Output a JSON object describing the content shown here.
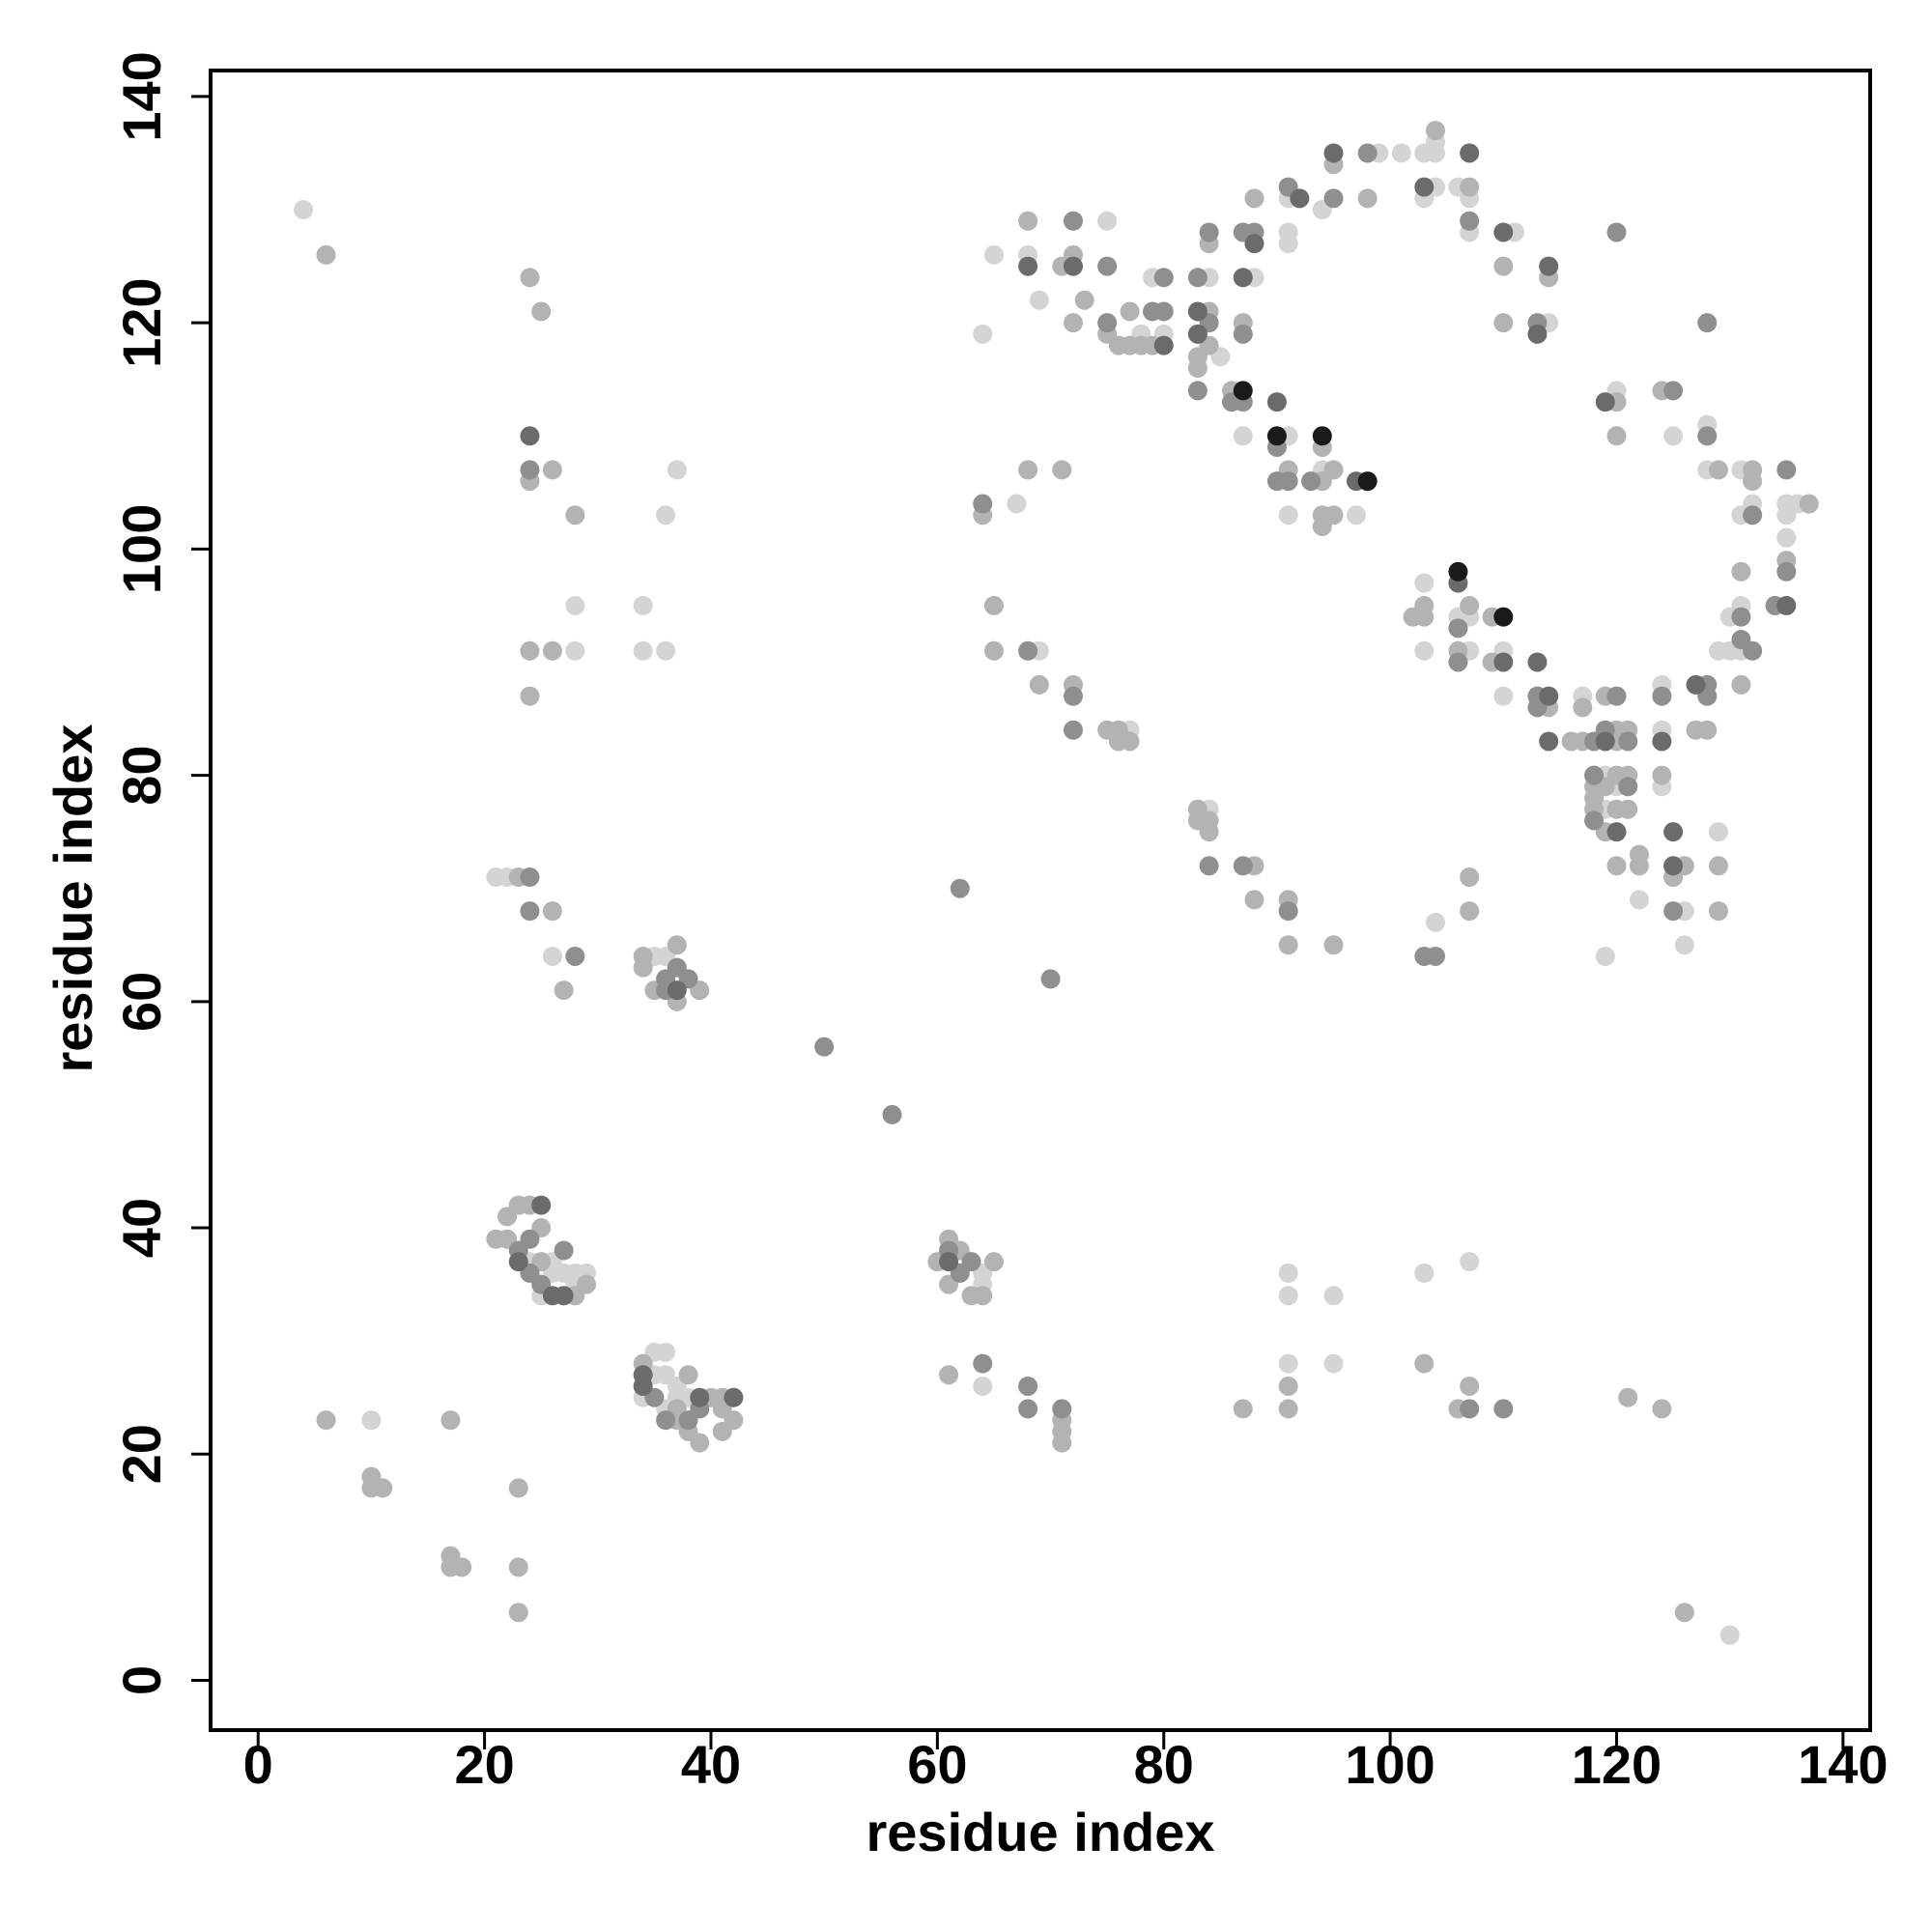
{
  "chart_data": {
    "type": "scatter",
    "x_label": "residue index",
    "y_label": "residue index",
    "xlim": [
      -4.2,
      142.4
    ],
    "ylim": [
      -4.4,
      142.3
    ],
    "xticks": [
      0,
      20,
      40,
      60,
      80,
      100,
      120,
      140
    ],
    "yticks": [
      0,
      20,
      40,
      60,
      80,
      100,
      120,
      140
    ],
    "series": [
      {
        "color": "#d4d4d4",
        "x": [
          4,
          28,
          28,
          34,
          34,
          36,
          36,
          37,
          21,
          22,
          26,
          35,
          36,
          24,
          26,
          27,
          28,
          29,
          25,
          26,
          28,
          35,
          36,
          35,
          36,
          37,
          34,
          36,
          38,
          37,
          10,
          130,
          64,
          64,
          64,
          91,
          91,
          91,
          95,
          95,
          103,
          107,
          64,
          65,
          68,
          69,
          75,
          78,
          79,
          80,
          84,
          85,
          87,
          88,
          91,
          91,
          91,
          91,
          91,
          94,
          94,
          97,
          99,
          101,
          103,
          103,
          104,
          104,
          104,
          106,
          107,
          107,
          111,
          114,
          120,
          125,
          128,
          128,
          131,
          131,
          132,
          135,
          135,
          135,
          136,
          130,
          131,
          131,
          129,
          130,
          124,
          124,
          124,
          103,
          103,
          106,
          107,
          107,
          110,
          110,
          117,
          119,
          119,
          120,
          119,
          122,
          126,
          126,
          129,
          67,
          69,
          77,
          84,
          104
        ],
        "values": [
          130,
          91,
          95,
          95,
          91,
          91,
          103,
          107,
          71,
          71,
          64,
          64,
          64,
          37,
          36,
          36,
          36,
          36,
          34,
          37,
          35,
          29,
          29,
          27,
          27,
          26,
          25,
          24,
          25,
          25,
          23,
          4,
          36,
          35,
          26,
          28,
          34,
          36,
          34,
          28,
          36,
          37,
          119,
          126,
          126,
          122,
          129,
          119,
          124,
          119,
          124,
          117,
          110,
          124,
          110,
          103,
          131,
          128,
          127,
          107,
          130,
          103,
          135,
          135,
          135,
          131,
          135,
          136,
          132,
          132,
          131,
          128,
          128,
          120,
          114,
          110,
          111,
          107,
          107,
          103,
          104,
          104,
          103,
          101,
          104,
          94,
          95,
          91,
          91,
          91,
          88,
          84,
          79,
          97,
          91,
          94,
          94,
          91,
          91,
          87,
          87,
          80,
          77,
          79,
          64,
          69,
          68,
          65,
          75,
          104,
          91,
          84,
          77,
          67
        ]
      },
      {
        "color": "#b3b3b3",
        "x": [
          6,
          24,
          25,
          26,
          24,
          28,
          24,
          26,
          24,
          23,
          26,
          27,
          34,
          34,
          37,
          35,
          37,
          39,
          22,
          23,
          24,
          21,
          22,
          25,
          25,
          28,
          29,
          34,
          37,
          38,
          37,
          38,
          39,
          40,
          41,
          41,
          42,
          41,
          6,
          17,
          10,
          10,
          11,
          23,
          17,
          17,
          18,
          23,
          23,
          60,
          61,
          62,
          61,
          63,
          64,
          65,
          61,
          71,
          71,
          71,
          87,
          91,
          91,
          103,
          106,
          107,
          121,
          124,
          126,
          68,
          71,
          72,
          73,
          72,
          75,
          76,
          77,
          77,
          78,
          79,
          83,
          83,
          84,
          84,
          84,
          86,
          87,
          88,
          91,
          94,
          94,
          94,
          94,
          95,
          95,
          95,
          98,
          104,
          107,
          110,
          110,
          114,
          120,
          120,
          124,
          129,
          132,
          132,
          137,
          135,
          131,
          131,
          127,
          128,
          124,
          102,
          103,
          103,
          106,
          107,
          109,
          109,
          114,
          116,
          117,
          117,
          119,
          120,
          120,
          121,
          118,
          118,
          118,
          119,
          119,
          120,
          120,
          121,
          121,
          120,
          122,
          122,
          125,
          126,
          129,
          129,
          64,
          68,
          71,
          65,
          65,
          69,
          72,
          75,
          76,
          76,
          77,
          83,
          83,
          84,
          84,
          88,
          88,
          91,
          91,
          95,
          107,
          107
        ],
        "values": [
          126,
          124,
          121,
          107,
          106,
          103,
          91,
          91,
          87,
          71,
          68,
          61,
          64,
          63,
          65,
          61,
          60,
          61,
          41,
          42,
          42,
          39,
          39,
          40,
          37,
          34,
          35,
          28,
          24,
          27,
          23,
          22,
          21,
          25,
          25,
          24,
          23,
          22,
          23,
          23,
          18,
          17,
          17,
          17,
          11,
          10,
          10,
          10,
          6,
          37,
          39,
          38,
          35,
          34,
          34,
          37,
          27,
          23,
          22,
          21,
          24,
          24,
          26,
          28,
          24,
          26,
          25,
          24,
          6,
          129,
          125,
          126,
          122,
          120,
          119,
          118,
          118,
          121,
          118,
          118,
          117,
          116,
          127,
          121,
          118,
          114,
          120,
          131,
          107,
          109,
          106,
          103,
          102,
          134,
          107,
          103,
          131,
          137,
          132,
          125,
          120,
          124,
          113,
          110,
          114,
          107,
          107,
          106,
          104,
          99,
          98,
          88,
          84,
          84,
          80,
          94,
          94,
          95,
          91,
          95,
          94,
          90,
          86,
          83,
          86,
          83,
          87,
          84,
          83,
          84,
          79,
          78,
          77,
          79,
          75,
          80,
          77,
          80,
          77,
          72,
          73,
          72,
          71,
          72,
          72,
          68,
          103,
          107,
          107,
          95,
          91,
          88,
          88,
          84,
          84,
          83,
          83,
          77,
          76,
          76,
          75,
          72,
          69,
          69,
          65,
          65,
          71,
          68
        ]
      },
      {
        "color": "#8f8f8f",
        "x": [
          24,
          24,
          24,
          28,
          37,
          36,
          38,
          36,
          50,
          56,
          62,
          70,
          24,
          23,
          27,
          24,
          25,
          35,
          36,
          38,
          39,
          61,
          62,
          63,
          64,
          68,
          68,
          71,
          107,
          110,
          72,
          75,
          75,
          79,
          80,
          80,
          83,
          83,
          84,
          84,
          86,
          87,
          87,
          87,
          88,
          90,
          90,
          91,
          91,
          93,
          95,
          98,
          107,
          113,
          120,
          125,
          128,
          128,
          132,
          135,
          135,
          134,
          131,
          131,
          132,
          128,
          128,
          124,
          106,
          106,
          113,
          113,
          118,
          119,
          120,
          121,
          118,
          118,
          121,
          125,
          64,
          68,
          72,
          72,
          84,
          87,
          91,
          103,
          104
        ],
        "values": [
          107,
          71,
          68,
          64,
          63,
          62,
          62,
          61,
          56,
          50,
          70,
          62,
          39,
          38,
          38,
          36,
          35,
          25,
          23,
          23,
          24,
          38,
          36,
          37,
          28,
          26,
          24,
          24,
          24,
          24,
          129,
          125,
          120,
          121,
          121,
          124,
          124,
          114,
          128,
          120,
          113,
          128,
          119,
          113,
          128,
          109,
          106,
          106,
          132,
          106,
          131,
          135,
          129,
          120,
          128,
          114,
          120,
          110,
          103,
          107,
          98,
          95,
          94,
          92,
          91,
          88,
          87,
          87,
          93,
          90,
          87,
          86,
          83,
          84,
          87,
          83,
          80,
          76,
          79,
          68,
          104,
          91,
          87,
          84,
          72,
          72,
          68,
          64,
          64
        ]
      },
      {
        "color": "#6b6b6b",
        "x": [
          24,
          37,
          25,
          23,
          26,
          27,
          34,
          34,
          39,
          42,
          61,
          68,
          72,
          80,
          83,
          83,
          87,
          88,
          90,
          92,
          95,
          97,
          103,
          107,
          110,
          113,
          114,
          119,
          135,
          127,
          124,
          106,
          110,
          113,
          114,
          114,
          119,
          120,
          125,
          125
        ],
        "values": [
          110,
          61,
          42,
          37,
          34,
          34,
          27,
          26,
          25,
          25,
          37,
          125,
          125,
          118,
          121,
          119,
          124,
          127,
          113,
          131,
          135,
          106,
          132,
          135,
          128,
          119,
          125,
          113,
          95,
          88,
          83,
          97,
          90,
          90,
          87,
          83,
          83,
          75,
          75,
          72
        ]
      },
      {
        "color": "#1a1a1a",
        "x": [
          87,
          90,
          94,
          98,
          106,
          110
        ],
        "values": [
          114,
          110,
          110,
          106,
          98,
          94
        ]
      }
    ]
  }
}
